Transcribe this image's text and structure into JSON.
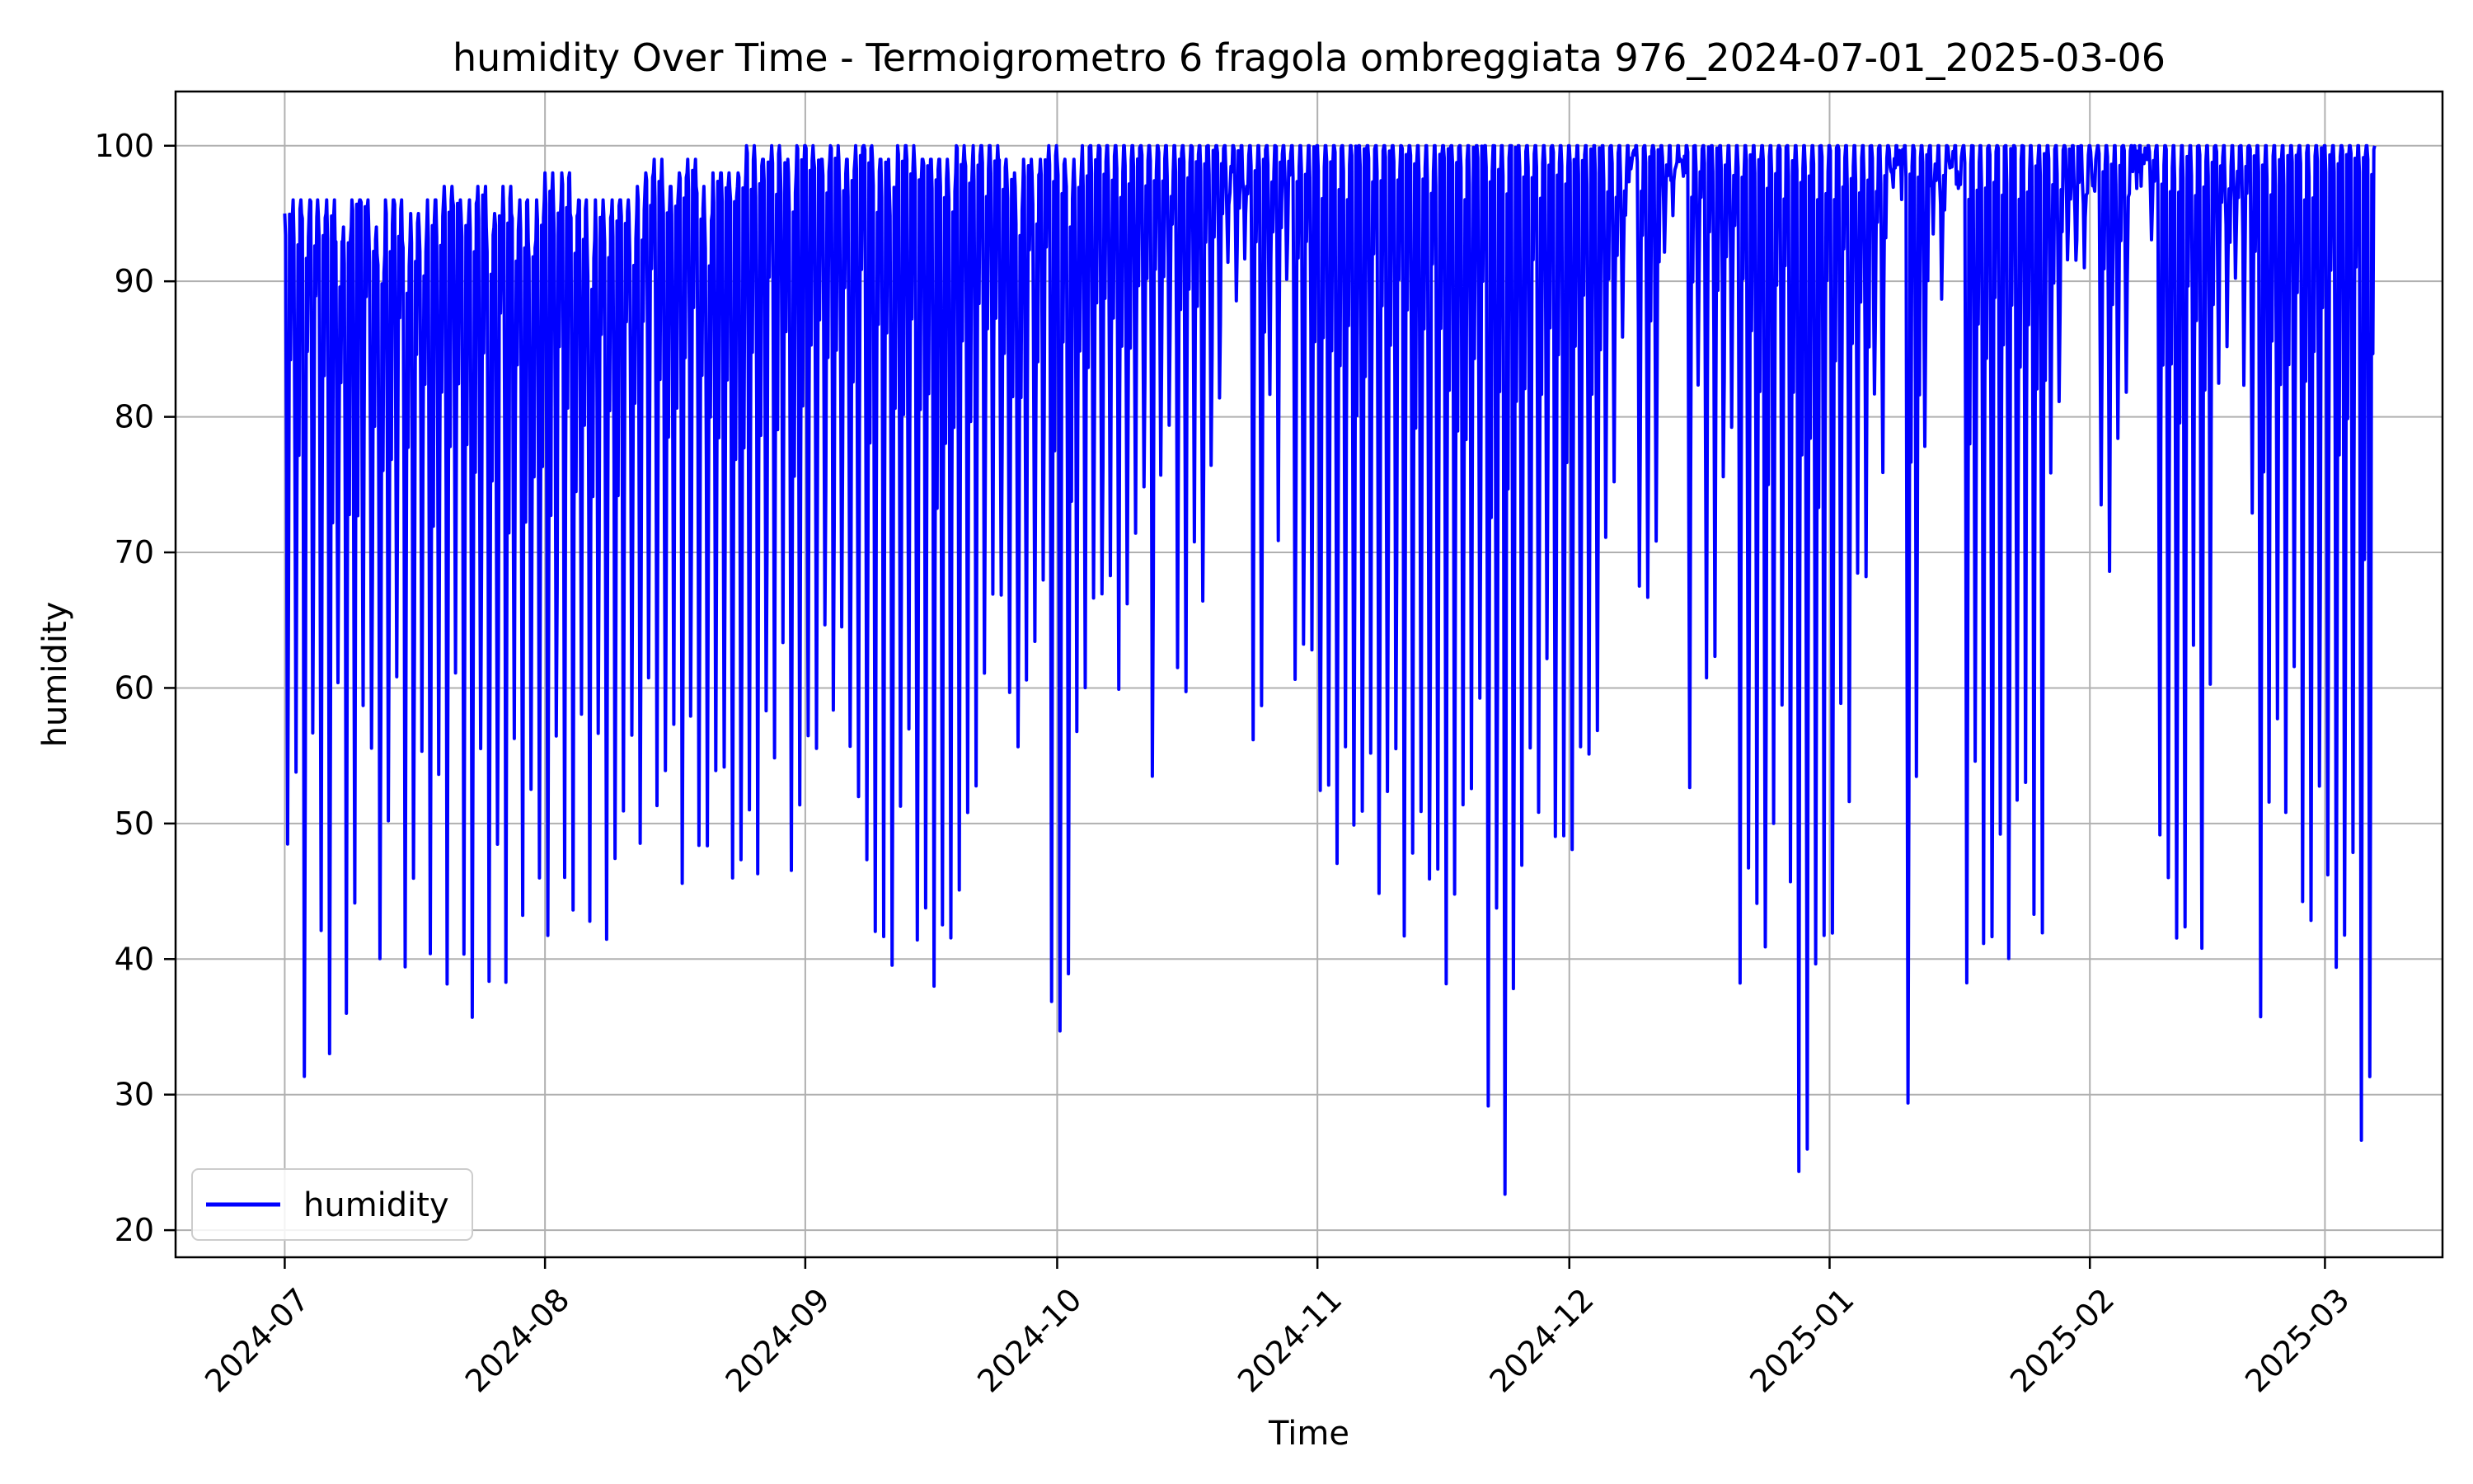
{
  "chart_data": {
    "type": "line",
    "title": "humidity Over Time - Termoigrometro 6 fragola ombreggiata 976_2024-07-01_2025-03-06",
    "xlabel": "Time",
    "ylabel": "humidity",
    "xlim": [
      "2024-06-18",
      "2025-03-15"
    ],
    "ylim": [
      18,
      104
    ],
    "x_tick_labels": [
      "2024-07",
      "2024-08",
      "2024-09",
      "2024-10",
      "2024-11",
      "2024-12",
      "2025-01",
      "2025-02",
      "2025-03"
    ],
    "x_tick_dates": [
      "2024-07-01",
      "2024-08-01",
      "2024-09-01",
      "2024-10-01",
      "2024-11-01",
      "2024-12-01",
      "2025-01-01",
      "2025-02-01",
      "2025-03-01"
    ],
    "y_ticks": [
      20,
      30,
      40,
      50,
      60,
      70,
      80,
      90,
      100
    ],
    "grid": true,
    "legend": {
      "position": "lower-left",
      "entries": [
        "humidity"
      ]
    },
    "colors": {
      "humidity": "#0000ff",
      "grid": "#b0b0b0"
    },
    "series": [
      {
        "name": "humidity",
        "x": [
          "2024-07-01",
          "2024-07-02",
          "2024-07-03",
          "2024-07-04",
          "2024-07-05",
          "2024-07-06",
          "2024-07-07",
          "2024-07-08",
          "2024-07-09",
          "2024-07-10",
          "2024-07-11",
          "2024-07-12",
          "2024-07-13",
          "2024-07-14",
          "2024-07-15",
          "2024-07-16",
          "2024-07-17",
          "2024-07-18",
          "2024-07-19",
          "2024-07-20",
          "2024-07-21",
          "2024-07-22",
          "2024-07-23",
          "2024-07-24",
          "2024-07-25",
          "2024-07-26",
          "2024-07-27",
          "2024-07-28",
          "2024-07-29",
          "2024-07-30",
          "2024-07-31",
          "2024-08-01",
          "2024-08-02",
          "2024-08-03",
          "2024-08-04",
          "2024-08-05",
          "2024-08-06",
          "2024-08-07",
          "2024-08-08",
          "2024-08-09",
          "2024-08-10",
          "2024-08-11",
          "2024-08-12",
          "2024-08-13",
          "2024-08-14",
          "2024-08-15",
          "2024-08-16",
          "2024-08-17",
          "2024-08-18",
          "2024-08-19",
          "2024-08-20",
          "2024-08-21",
          "2024-08-22",
          "2024-08-23",
          "2024-08-24",
          "2024-08-25",
          "2024-08-26",
          "2024-08-27",
          "2024-08-28",
          "2024-08-29",
          "2024-08-30",
          "2024-08-31",
          "2024-09-01",
          "2024-09-02",
          "2024-09-03",
          "2024-09-04",
          "2024-09-05",
          "2024-09-06",
          "2024-09-07",
          "2024-09-08",
          "2024-09-09",
          "2024-09-10",
          "2024-09-11",
          "2024-09-12",
          "2024-09-13",
          "2024-09-14",
          "2024-09-15",
          "2024-09-16",
          "2024-09-17",
          "2024-09-18",
          "2024-09-19",
          "2024-09-20",
          "2024-09-21",
          "2024-09-22",
          "2024-09-23",
          "2024-09-24",
          "2024-09-25",
          "2024-09-26",
          "2024-09-27",
          "2024-09-28",
          "2024-09-29",
          "2024-09-30",
          "2024-10-01",
          "2024-10-02",
          "2024-10-03",
          "2024-10-04",
          "2024-10-05",
          "2024-10-06",
          "2024-10-07",
          "2024-10-08",
          "2024-10-09",
          "2024-10-10",
          "2024-10-11",
          "2024-10-12",
          "2024-10-13",
          "2024-10-14",
          "2024-10-15",
          "2024-10-16",
          "2024-10-17",
          "2024-10-18",
          "2024-10-19",
          "2024-10-20",
          "2024-10-21",
          "2024-10-22",
          "2024-10-23",
          "2024-10-24",
          "2024-10-25",
          "2024-10-26",
          "2024-10-27",
          "2024-10-28",
          "2024-10-29",
          "2024-10-30",
          "2024-10-31",
          "2024-11-01",
          "2024-11-02",
          "2024-11-03",
          "2024-11-04",
          "2024-11-05",
          "2024-11-06",
          "2024-11-07",
          "2024-11-08",
          "2024-11-09",
          "2024-11-10",
          "2024-11-11",
          "2024-11-12",
          "2024-11-13",
          "2024-11-14",
          "2024-11-15",
          "2024-11-16",
          "2024-11-17",
          "2024-11-18",
          "2024-11-19",
          "2024-11-20",
          "2024-11-21",
          "2024-11-22",
          "2024-11-23",
          "2024-11-24",
          "2024-11-25",
          "2024-11-26",
          "2024-11-27",
          "2024-11-28",
          "2024-11-29",
          "2024-11-30",
          "2024-12-01",
          "2024-12-02",
          "2024-12-03",
          "2024-12-04",
          "2024-12-05",
          "2024-12-06",
          "2024-12-07",
          "2024-12-08",
          "2024-12-09",
          "2024-12-10",
          "2024-12-11",
          "2024-12-12",
          "2024-12-13",
          "2024-12-14",
          "2024-12-15",
          "2024-12-16",
          "2024-12-17",
          "2024-12-18",
          "2024-12-19",
          "2024-12-20",
          "2024-12-21",
          "2024-12-22",
          "2024-12-23",
          "2024-12-24",
          "2024-12-25",
          "2024-12-26",
          "2024-12-27",
          "2024-12-28",
          "2024-12-29",
          "2024-12-30",
          "2024-12-31",
          "2025-01-01",
          "2025-01-02",
          "2025-01-03",
          "2025-01-04",
          "2025-01-05",
          "2025-01-06",
          "2025-01-07",
          "2025-01-08",
          "2025-01-09",
          "2025-01-10",
          "2025-01-11",
          "2025-01-12",
          "2025-01-13",
          "2025-01-14",
          "2025-01-15",
          "2025-01-16",
          "2025-01-17",
          "2025-01-18",
          "2025-01-19",
          "2025-01-20",
          "2025-01-21",
          "2025-01-22",
          "2025-01-23",
          "2025-01-24",
          "2025-01-25",
          "2025-01-26",
          "2025-01-27",
          "2025-01-28",
          "2025-01-29",
          "2025-01-30",
          "2025-01-31",
          "2025-02-01",
          "2025-02-02",
          "2025-02-03",
          "2025-02-04",
          "2025-02-05",
          "2025-02-06",
          "2025-02-07",
          "2025-02-08",
          "2025-02-09",
          "2025-02-10",
          "2025-02-11",
          "2025-02-12",
          "2025-02-13",
          "2025-02-14",
          "2025-02-15",
          "2025-02-16",
          "2025-02-17",
          "2025-02-18",
          "2025-02-19",
          "2025-02-20",
          "2025-02-21",
          "2025-02-22",
          "2025-02-23",
          "2025-02-24",
          "2025-02-25",
          "2025-02-26",
          "2025-02-27",
          "2025-02-28",
          "2025-03-01",
          "2025-03-02",
          "2025-03-03",
          "2025-03-04",
          "2025-03-05",
          "2025-03-06"
        ],
        "min": [
          47,
          53,
          31,
          55,
          42,
          32,
          60,
          36,
          44,
          58,
          55,
          40,
          50,
          60,
          38,
          44,
          55,
          40,
          52,
          37,
          60,
          40,
          35,
          55,
          38,
          48,
          37,
          55,
          42,
          52,
          45,
          41,
          55,
          45,
          43,
          57,
          42,
          55,
          40,
          47,
          50,
          55,
          48,
          60,
          51,
          52,
          56,
          45,
          57,
          47,
          48,
          52,
          54,
          45,
          47,
          50,
          46,
          57,
          53,
          62,
          46,
          51,
          55,
          55,
          64,
          57,
          64,
          55,
          50,
          46,
          41,
          40,
          38,
          50,
          55,
          40,
          43,
          38,
          41,
          40,
          45,
          50,
          52,
          60,
          66,
          65,
          58,
          54,
          60,
          62,
          66,
          36,
          33,
          37,
          55,
          60,
          65,
          66,
          68,
          58,
          66,
          70,
          73,
          53,
          75,
          78,
          60,
          58,
          70,
          65,
          75,
          80,
          90,
          88,
          90,
          56,
          58,
          80,
          70,
          90,
          59,
          62,
          62,
          52,
          51,
          47,
          54,
          48,
          50,
          55,
          44,
          52,
          55,
          40,
          47,
          50,
          44,
          46,
          38,
          44,
          50,
          52,
          59,
          29,
          43,
          22,
          37,
          46,
          55,
          50,
          62,
          49,
          48,
          47,
          55,
          55,
          55,
          70,
          75,
          85,
          98,
          66,
          66,
          70,
          92,
          94,
          98,
          52,
          82,
          60,
          62,
          75,
          78,
          37,
          45,
          44,
          40,
          50,
          57,
          45,
          23,
          25,
          39,
          41,
          40,
          58,
          50,
          68,
          67,
          80,
          75,
          97,
          99,
          29,
          53,
          77,
          93,
          88,
          98,
          96,
          37,
          53,
          40,
          40,
          48,
          40,
          50,
          53,
          43,
          41,
          75,
          80,
          91,
          90,
          91,
          96,
          72,
          68,
          78,
          80,
          99,
          98,
          92,
          49,
          45,
          40,
          41,
          63,
          40,
          60,
          82,
          84,
          90,
          82,
          72,
          35,
          50,
          57,
          50,
          60,
          44,
          42,
          52,
          45,
          39,
          41,
          46,
          26,
          30
        ],
        "max": [
          95,
          96,
          95,
          96,
          95,
          96,
          93,
          94,
          96,
          96,
          94,
          92,
          96,
          96,
          93,
          95,
          94,
          96,
          96,
          97,
          96,
          95,
          96,
          97,
          94,
          95,
          97,
          95,
          96,
          93,
          96,
          98,
          96,
          98,
          95,
          96,
          93,
          96,
          95,
          96,
          96,
          95,
          97,
          98,
          99,
          97,
          97,
          98,
          99,
          97,
          95,
          98,
          98,
          97,
          98,
          100,
          99,
          99,
          100,
          99,
          98,
          100,
          100,
          99,
          99,
          100,
          99,
          99,
          100,
          100,
          99,
          99,
          97,
          100,
          100,
          99,
          99,
          99,
          99,
          98,
          100,
          99,
          100,
          100,
          100,
          99,
          98,
          97,
          99,
          98,
          99,
          100,
          99,
          98,
          99,
          100,
          100,
          100,
          100,
          100,
          100,
          100,
          100,
          100,
          100,
          100,
          100,
          100,
          100,
          100,
          100,
          100,
          100,
          100,
          100,
          100,
          100,
          100,
          100,
          100,
          100,
          100,
          100,
          100,
          100,
          100,
          100,
          100,
          100,
          100,
          100,
          100,
          100,
          100,
          100,
          100,
          100,
          100,
          100,
          100,
          100,
          100,
          100,
          100,
          100,
          100,
          100,
          100,
          100,
          100,
          100,
          100,
          100,
          100,
          100,
          100,
          100,
          100,
          100,
          100,
          100,
          100,
          100,
          100,
          100,
          100,
          100,
          100,
          100,
          100,
          100,
          100,
          100,
          100,
          100,
          100,
          100,
          100,
          100,
          100,
          100,
          100,
          100,
          100,
          100,
          100,
          100,
          100,
          100,
          100,
          100,
          100,
          100,
          100,
          100,
          100,
          100,
          100,
          100,
          100,
          100,
          100,
          100,
          100,
          100,
          100,
          100,
          100,
          100,
          100,
          100,
          100,
          100,
          100,
          100,
          100,
          100,
          100,
          100,
          100,
          100,
          100,
          100,
          100,
          100,
          100,
          100,
          100,
          100,
          100,
          100,
          100,
          100,
          100,
          100,
          100,
          100,
          100,
          100,
          100,
          100,
          100,
          100,
          100,
          100,
          100,
          100,
          100,
          100
        ]
      }
    ]
  }
}
